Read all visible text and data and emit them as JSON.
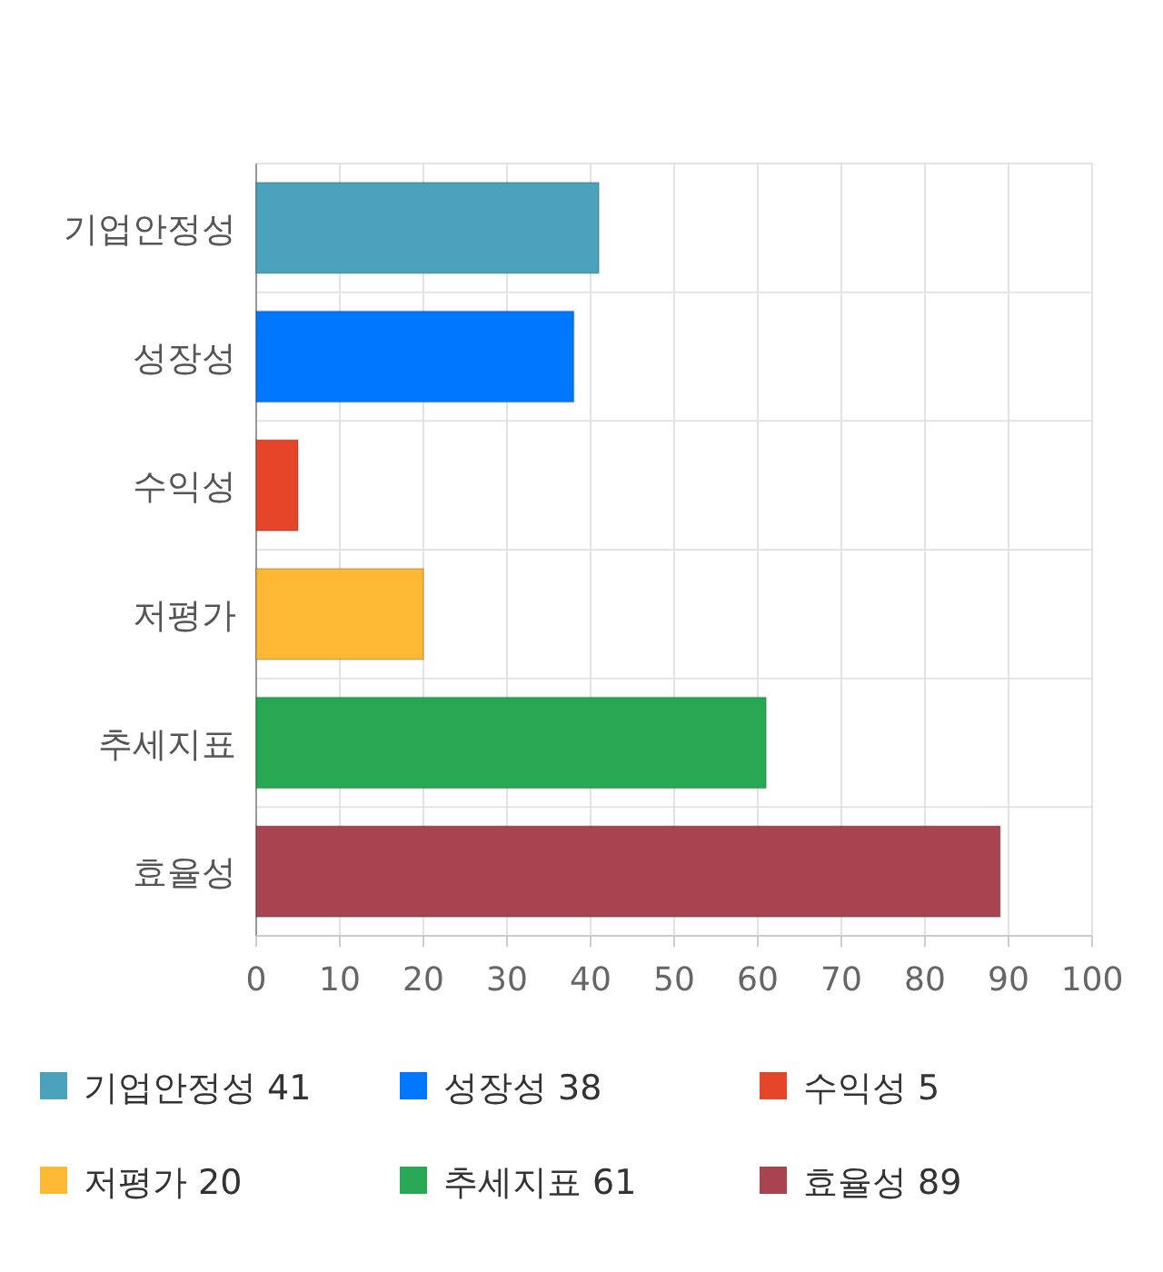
{
  "chart_data": {
    "type": "bar",
    "orientation": "horizontal",
    "categories": [
      "기업안정성",
      "성장성",
      "수익성",
      "저평가",
      "추세지표",
      "효율성"
    ],
    "series": [
      {
        "name": "기업안정성 41",
        "color": "#4aa3ba",
        "values": [
          41,
          null,
          null,
          null,
          null,
          null
        ]
      },
      {
        "name": "성장성 38",
        "color": "#0077ff",
        "values": [
          null,
          38,
          null,
          null,
          null,
          null
        ]
      },
      {
        "name": "수익성 5",
        "color": "#e5462a",
        "values": [
          null,
          null,
          5,
          null,
          null,
          null
        ]
      },
      {
        "name": "저평가 20",
        "color": "#ffb833",
        "values": [
          null,
          null,
          null,
          20,
          null,
          null
        ]
      },
      {
        "name": "추세지표 61",
        "color": "#28a855",
        "values": [
          null,
          null,
          null,
          null,
          61,
          null
        ]
      },
      {
        "name": "효율성 89",
        "color": "#a84350",
        "values": [
          null,
          null,
          null,
          null,
          null,
          89
        ]
      }
    ],
    "xlim": [
      0,
      100
    ],
    "xticks": [
      0,
      10,
      20,
      30,
      40,
      50,
      60,
      70,
      80,
      90,
      100
    ],
    "grid": true,
    "legend": "bottom"
  }
}
